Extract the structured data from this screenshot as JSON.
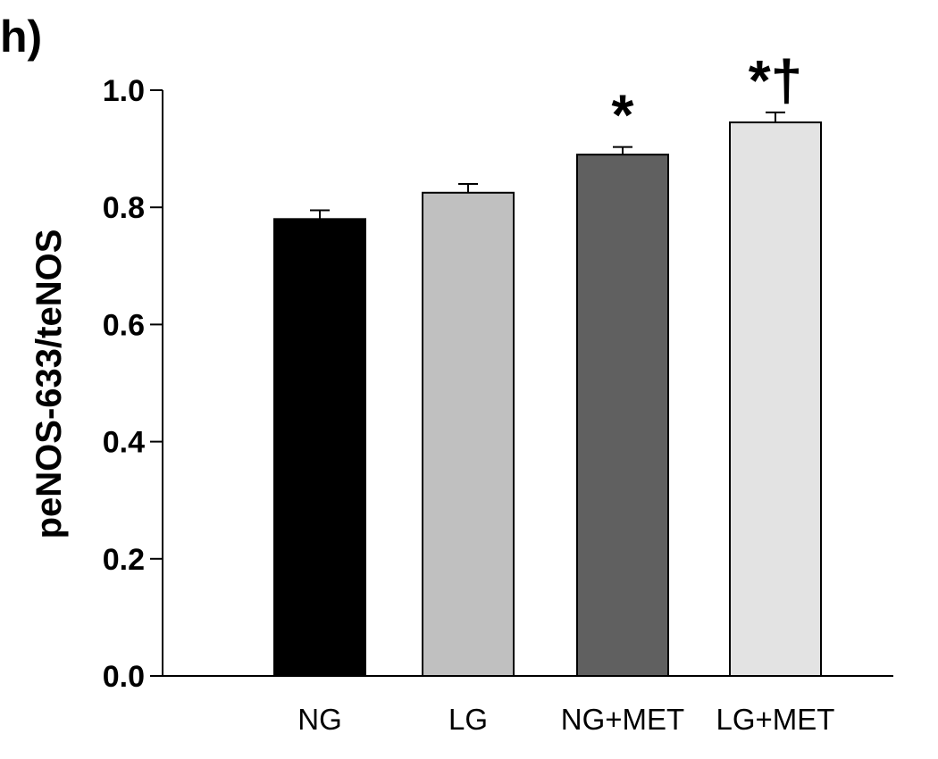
{
  "chart_data": {
    "type": "bar",
    "panel_label": "h)",
    "title": "",
    "xlabel": "",
    "ylabel": "peNOS-633/teNOS",
    "ylim": [
      0,
      1.0
    ],
    "yticks": [
      "0.0",
      "0.2",
      "0.4",
      "0.6",
      "0.8",
      "1.0"
    ],
    "grid": false,
    "legend": "none",
    "categories": [
      "NG",
      "LG",
      "NG+MET",
      "LG+MET"
    ],
    "values": [
      0.78,
      0.825,
      0.89,
      0.945
    ],
    "errors": [
      0.015,
      0.015,
      0.013,
      0.017
    ],
    "colors": [
      "#000000",
      "#c0c0c0",
      "#606060",
      "#e3e3e3"
    ],
    "annotations": [
      "",
      "",
      "*",
      "*†"
    ]
  }
}
